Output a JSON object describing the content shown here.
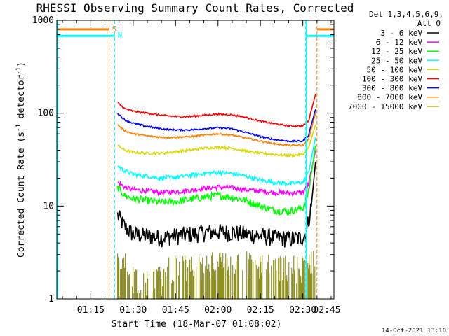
{
  "chart_data": {
    "type": "line",
    "title": "RHESSI Observing Summary Count Rates, Corrected",
    "xlabel": "Start Time (18-Mar-07 01:08:02)",
    "ylabel": "Corrected Count Rate (s",
    "ylabel_sup1": "-1",
    "ylabel_mid": " detector",
    "ylabel_sup2": "-1",
    "ylabel_end": ")",
    "y_scale": "log",
    "ylim": [
      1,
      1000
    ],
    "xlim_minutes": [
      3,
      101
    ],
    "x_ticks": [
      {
        "minute": 15,
        "label": "01:15"
      },
      {
        "minute": 30,
        "label": "01:30"
      },
      {
        "minute": 45,
        "label": "01:45"
      },
      {
        "minute": 60,
        "label": "02:00"
      },
      {
        "minute": 75,
        "label": "02:15"
      },
      {
        "minute": 90,
        "label": "02:30"
      },
      {
        "minute": 105,
        "label": "02:45"
      }
    ],
    "y_ticks": [
      {
        "value": 1,
        "label": "1"
      },
      {
        "value": 10,
        "label": "10"
      },
      {
        "value": 100,
        "label": "100"
      },
      {
        "value": 1000,
        "label": "1000"
      }
    ],
    "legend_header": [
      "Det 1,3,4,5,6,9,",
      "Att 0"
    ],
    "legend_position": "right",
    "series": [
      {
        "name": "3 - 6 keV",
        "color": "#000000",
        "points": [
          [
            24.5,
            8
          ],
          [
            27,
            6
          ],
          [
            30,
            5
          ],
          [
            35,
            4.8
          ],
          [
            40,
            4.6
          ],
          [
            45,
            4.8
          ],
          [
            50,
            5
          ],
          [
            55,
            5.2
          ],
          [
            60,
            5.3
          ],
          [
            65,
            5.2
          ],
          [
            70,
            5
          ],
          [
            75,
            4.8
          ],
          [
            80,
            4.6
          ],
          [
            85,
            4.5
          ],
          [
            89,
            4.5
          ],
          [
            91,
            5
          ],
          [
            93,
            10
          ],
          [
            94.5,
            30
          ]
        ],
        "noise": 0.22
      },
      {
        "name": "6 - 12 keV",
        "color": "#ff00ff",
        "points": [
          [
            24.5,
            18
          ],
          [
            27,
            16
          ],
          [
            30,
            15
          ],
          [
            35,
            14.5
          ],
          [
            40,
            14
          ],
          [
            45,
            14.3
          ],
          [
            50,
            14.8
          ],
          [
            55,
            15.5
          ],
          [
            60,
            16
          ],
          [
            65,
            15.8
          ],
          [
            70,
            15
          ],
          [
            75,
            14.5
          ],
          [
            80,
            14
          ],
          [
            85,
            13.8
          ],
          [
            90,
            14
          ],
          [
            92,
            17
          ],
          [
            94.5,
            40
          ]
        ],
        "noise": 0.06
      },
      {
        "name": "12 - 25 keV",
        "color": "#00ff00",
        "points": [
          [
            24.5,
            16
          ],
          [
            27,
            13
          ],
          [
            30,
            12
          ],
          [
            35,
            11.5
          ],
          [
            40,
            11
          ],
          [
            45,
            11.2
          ],
          [
            50,
            11.8
          ],
          [
            55,
            12.5
          ],
          [
            60,
            13
          ],
          [
            65,
            12.5
          ],
          [
            70,
            11.5
          ],
          [
            75,
            10
          ],
          [
            80,
            9
          ],
          [
            85,
            8.8
          ],
          [
            90,
            9.5
          ],
          [
            92,
            14
          ],
          [
            94.5,
            45
          ]
        ],
        "noise": 0.09
      },
      {
        "name": "25 - 50 keV",
        "color": "#00ffff",
        "points": [
          [
            24.5,
            27
          ],
          [
            27,
            24
          ],
          [
            30,
            22
          ],
          [
            35,
            21
          ],
          [
            40,
            20
          ],
          [
            45,
            20.5
          ],
          [
            50,
            21.5
          ],
          [
            55,
            22.5
          ],
          [
            60,
            23
          ],
          [
            65,
            22.5
          ],
          [
            70,
            21
          ],
          [
            75,
            19
          ],
          [
            80,
            18
          ],
          [
            85,
            17.5
          ],
          [
            90,
            18
          ],
          [
            92,
            23
          ],
          [
            94.5,
            55
          ]
        ],
        "noise": 0.05
      },
      {
        "name": "50 - 100 keV",
        "color": "#d8d800",
        "points": [
          [
            24.5,
            45
          ],
          [
            27,
            40
          ],
          [
            30,
            38
          ],
          [
            35,
            37
          ],
          [
            40,
            37
          ],
          [
            45,
            38.5
          ],
          [
            50,
            40
          ],
          [
            55,
            42
          ],
          [
            60,
            43
          ],
          [
            65,
            42
          ],
          [
            70,
            39
          ],
          [
            75,
            37
          ],
          [
            80,
            36
          ],
          [
            85,
            35
          ],
          [
            90,
            36
          ],
          [
            92,
            42
          ],
          [
            94.5,
            75
          ]
        ],
        "noise": 0.03
      },
      {
        "name": "100 - 300 keV",
        "color": "#ff0000",
        "points": [
          [
            24.5,
            130
          ],
          [
            27,
            112
          ],
          [
            30,
            105
          ],
          [
            35,
            100
          ],
          [
            40,
            95
          ],
          [
            45,
            92
          ],
          [
            50,
            92
          ],
          [
            55,
            95
          ],
          [
            60,
            98
          ],
          [
            65,
            96
          ],
          [
            70,
            90
          ],
          [
            75,
            82
          ],
          [
            80,
            77
          ],
          [
            85,
            73
          ],
          [
            90,
            73
          ],
          [
            92,
            82
          ],
          [
            94.5,
            160
          ]
        ],
        "noise": 0.02
      },
      {
        "name": "300 - 800 keV",
        "color": "#0000ff",
        "points": [
          [
            24.5,
            100
          ],
          [
            27,
            85
          ],
          [
            30,
            78
          ],
          [
            35,
            72
          ],
          [
            40,
            68
          ],
          [
            45,
            66
          ],
          [
            50,
            66
          ],
          [
            55,
            68
          ],
          [
            60,
            70
          ],
          [
            65,
            68
          ],
          [
            70,
            62
          ],
          [
            75,
            56
          ],
          [
            80,
            52
          ],
          [
            85,
            50
          ],
          [
            90,
            50
          ],
          [
            92,
            58
          ],
          [
            94.5,
            110
          ]
        ],
        "noise": 0.02
      },
      {
        "name": "800 - 7000 keV",
        "color": "#ff8000",
        "points": [
          [
            24.5,
            75
          ],
          [
            27,
            65
          ],
          [
            30,
            60
          ],
          [
            35,
            57
          ],
          [
            40,
            55
          ],
          [
            45,
            55
          ],
          [
            50,
            56
          ],
          [
            55,
            58
          ],
          [
            60,
            60
          ],
          [
            65,
            58
          ],
          [
            70,
            54
          ],
          [
            75,
            50
          ],
          [
            80,
            47
          ],
          [
            85,
            45
          ],
          [
            90,
            45
          ],
          [
            92,
            52
          ],
          [
            94.5,
            100
          ]
        ],
        "noise": 0.02
      },
      {
        "name": "7000 - 15000 keV",
        "color": "#808000",
        "style": "bars",
        "points": [
          [
            24.5,
            3
          ],
          [
            27,
            2.5
          ],
          [
            30,
            1.8
          ],
          [
            35,
            1.5
          ],
          [
            40,
            2
          ],
          [
            45,
            2.2
          ],
          [
            50,
            2.2
          ],
          [
            55,
            2.3
          ],
          [
            60,
            2.5
          ],
          [
            65,
            2.4
          ],
          [
            70,
            2.5
          ],
          [
            75,
            2.3
          ],
          [
            80,
            2.2
          ],
          [
            85,
            2.2
          ],
          [
            90,
            2.2
          ],
          [
            92,
            2.5
          ],
          [
            94.5,
            3
          ]
        ],
        "noise": 0.35
      }
    ],
    "flags": [
      {
        "label": "S",
        "color": "#ff8000",
        "bars_minutes": [
          [
            3,
            21.5
          ],
          [
            95,
            101
          ]
        ],
        "bar_value": 800,
        "line_minutes": [
          21.5,
          95
        ],
        "line_style": "dashed"
      },
      {
        "label": "N",
        "color": "#00ffff",
        "bars_minutes": [
          [
            3,
            23.5
          ],
          [
            91,
            101
          ]
        ],
        "bar_value": 680,
        "line_minutes": [
          23.5,
          91
        ],
        "line_style": "dashed",
        "solid_minutes": [
          3,
          91
        ]
      }
    ],
    "grid": false
  },
  "footer": {
    "timestamp": "14-Oct-2021 13:10"
  }
}
